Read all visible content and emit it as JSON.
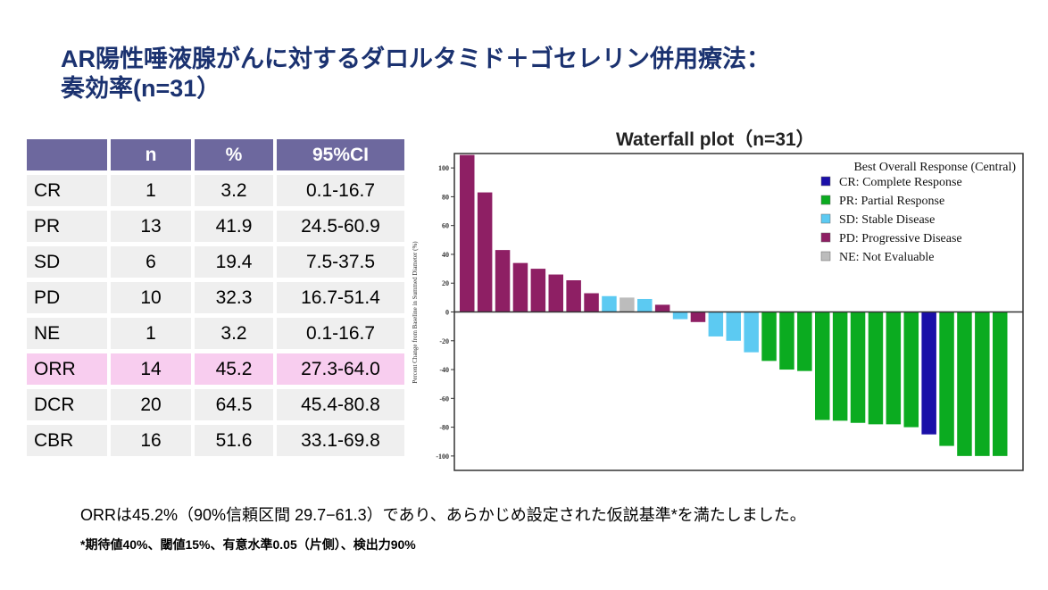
{
  "title": {
    "line1": "AR陽性唾液腺がんに対するダロルタミド＋ゴセレリン併用療法：",
    "line2": "奏効率(n=31）"
  },
  "table": {
    "headers": [
      "",
      "n",
      "%",
      "95%CI"
    ],
    "rows": [
      [
        "CR",
        "1",
        "3.2",
        "0.1-16.7"
      ],
      [
        "PR",
        "13",
        "41.9",
        "24.5-60.9"
      ],
      [
        "SD",
        "6",
        "19.4",
        "7.5-37.5"
      ],
      [
        "PD",
        "10",
        "32.3",
        "16.7-51.4"
      ],
      [
        "NE",
        "1",
        "3.2",
        "0.1-16.7"
      ],
      [
        "ORR",
        "14",
        "45.2",
        "27.3-64.0"
      ],
      [
        "DCR",
        "20",
        "64.5",
        "45.4-80.8"
      ],
      [
        "CBR",
        "16",
        "51.6",
        "33.1-69.8"
      ]
    ],
    "highlight_row": "ORR",
    "header_color": "#6d689e",
    "highlight_color": "#f8cdef"
  },
  "chart_data": {
    "type": "bar",
    "title": "Waterfall plot（n=31）",
    "ylabel": "Percent Change from Baseline in Summed Diameter (%)",
    "ylim": [
      -110,
      110
    ],
    "yticks": [
      100,
      80,
      60,
      40,
      20,
      0,
      -20,
      -40,
      -60,
      -80,
      -100
    ],
    "legend": {
      "title": "Best Overall Response (Central)",
      "position": "top-right",
      "items": [
        {
          "key": "CR",
          "label": "CR: Complete Response",
          "color": "#1a0fa8"
        },
        {
          "key": "PR",
          "label": "PR: Partial Response",
          "color": "#0bab20"
        },
        {
          "key": "SD",
          "label": "SD: Stable Disease",
          "color": "#5ccaf2"
        },
        {
          "key": "PD",
          "label": "PD: Progressive Disease",
          "color": "#8e1f64"
        },
        {
          "key": "NE",
          "label": "NE: Not Evaluable",
          "color": "#bcbcbc"
        }
      ]
    },
    "values": [
      109,
      83,
      43,
      34,
      30,
      26,
      22,
      13,
      11,
      10,
      9,
      5,
      -5,
      -7,
      -17,
      -20,
      -28,
      -34,
      -40,
      -41,
      -75,
      -75.5,
      -77,
      -78,
      -78,
      -80,
      -85,
      -93,
      -100,
      -100,
      -100
    ],
    "responses": [
      "PD",
      "PD",
      "PD",
      "PD",
      "PD",
      "PD",
      "PD",
      "PD",
      "SD",
      "NE",
      "SD",
      "PD",
      "SD",
      "PD",
      "SD",
      "SD",
      "SD",
      "PR",
      "PR",
      "PR",
      "PR",
      "PR",
      "PR",
      "PR",
      "PR",
      "PR",
      "CR",
      "PR",
      "PR",
      "PR",
      "PR"
    ]
  },
  "notes": {
    "main": "ORRは45.2%（90%信頼区間 29.7−61.3）であり、あらかじめ設定された仮説基準*を満たしました。",
    "footnote": "*期待値40%、閾値15%、有意水準0.05（片側）、検出力90%"
  }
}
